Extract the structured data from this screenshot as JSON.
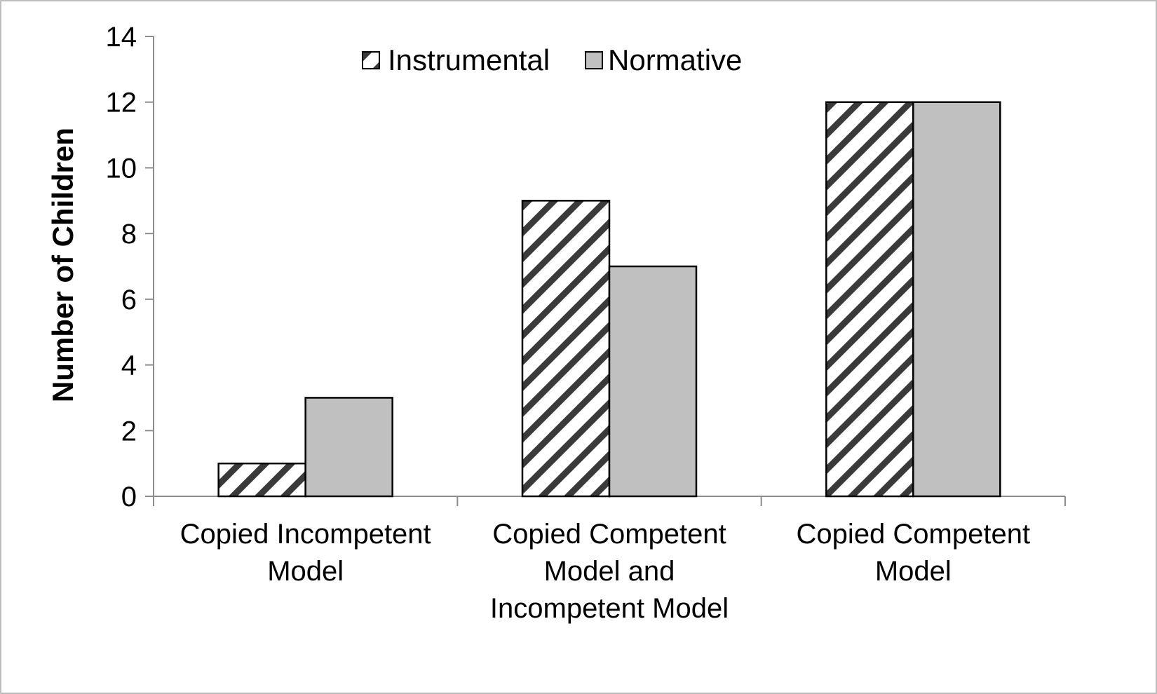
{
  "chart_data": {
    "type": "bar",
    "title": "",
    "xlabel": "",
    "ylabel": "Number of Children",
    "ylim": [
      0,
      14
    ],
    "yticks": [
      0,
      2,
      4,
      6,
      8,
      10,
      12,
      14
    ],
    "grid": false,
    "legend_position": "top-center",
    "categories": [
      [
        "Copied Incompetent",
        "Model"
      ],
      [
        "Copied Competent",
        "Model and",
        "Incompetent Model"
      ],
      [
        "Copied Competent",
        "Model"
      ]
    ],
    "series": [
      {
        "name": "Instrumental",
        "values": [
          1,
          9,
          12
        ],
        "fill": "hatched",
        "color": "#3a3a3a"
      },
      {
        "name": "Normative",
        "values": [
          3,
          7,
          12
        ],
        "fill": "solid",
        "color": "#c0c0c0"
      }
    ]
  }
}
